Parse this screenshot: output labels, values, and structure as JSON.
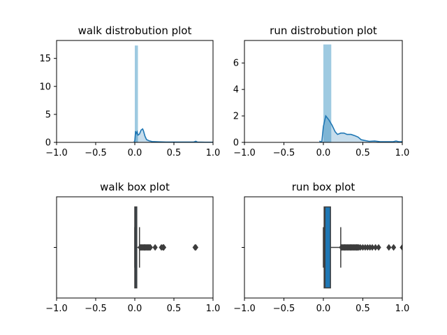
{
  "chart_data": [
    {
      "type": "histogram-kde",
      "title": "walk distrobution plot",
      "xlim": [
        -1.0,
        1.0
      ],
      "ylim": [
        0,
        18.2
      ],
      "xticks": [
        "−1.0",
        "−0.5",
        "0.0",
        "0.5",
        "1.0"
      ],
      "xtick_values": [
        -1.0,
        -0.5,
        0.0,
        0.5,
        1.0
      ],
      "yticks": [
        "0",
        "5",
        "10",
        "15"
      ],
      "ytick_values": [
        0,
        5,
        10,
        15
      ],
      "bar_color": "#9ecae1",
      "line_color": "#1f77b4",
      "bars": [
        {
          "x0": 0.0,
          "x1": 0.04,
          "height": 17.3
        }
      ],
      "kde": [
        [
          -0.01,
          0.1
        ],
        [
          0.0,
          0.3
        ],
        [
          0.01,
          2.0
        ],
        [
          0.02,
          1.6
        ],
        [
          0.03,
          1.9
        ],
        [
          0.04,
          1.3
        ],
        [
          0.06,
          1.5
        ],
        [
          0.08,
          2.2
        ],
        [
          0.1,
          2.4
        ],
        [
          0.11,
          2.1
        ],
        [
          0.13,
          1.1
        ],
        [
          0.15,
          0.5
        ],
        [
          0.18,
          0.3
        ],
        [
          0.22,
          0.15
        ],
        [
          0.3,
          0.1
        ],
        [
          0.4,
          0.05
        ],
        [
          0.6,
          0.05
        ],
        [
          0.75,
          0.05
        ],
        [
          0.78,
          0.2
        ],
        [
          0.8,
          0.05
        ],
        [
          0.9,
          0.03
        ],
        [
          1.0,
          0.02
        ]
      ]
    },
    {
      "type": "histogram-kde",
      "title": "run distrobution plot",
      "xlim": [
        -1.0,
        1.0
      ],
      "ylim": [
        0,
        7.7
      ],
      "xticks": [
        "−1.0",
        "−0.5",
        "0.0",
        "0.5",
        "1.0"
      ],
      "xtick_values": [
        -1.0,
        -0.5,
        0.0,
        0.5,
        1.0
      ],
      "yticks": [
        "0",
        "2",
        "4",
        "6"
      ],
      "ytick_values": [
        0,
        2,
        4,
        6
      ],
      "bar_color": "#9ecae1",
      "line_color": "#1f77b4",
      "bars": [
        {
          "x0": 0.0,
          "x1": 0.1,
          "height": 7.4
        }
      ],
      "kde": [
        [
          -0.05,
          0.1
        ],
        [
          -0.02,
          0.0
        ],
        [
          0.0,
          1.2
        ],
        [
          0.03,
          2.0
        ],
        [
          0.07,
          1.7
        ],
        [
          0.11,
          1.3
        ],
        [
          0.15,
          0.8
        ],
        [
          0.18,
          0.6
        ],
        [
          0.22,
          0.7
        ],
        [
          0.26,
          0.7
        ],
        [
          0.3,
          0.6
        ],
        [
          0.35,
          0.6
        ],
        [
          0.4,
          0.5
        ],
        [
          0.44,
          0.4
        ],
        [
          0.48,
          0.2
        ],
        [
          0.52,
          0.15
        ],
        [
          0.58,
          0.08
        ],
        [
          0.65,
          0.1
        ],
        [
          0.72,
          0.05
        ],
        [
          0.8,
          0.05
        ],
        [
          0.88,
          0.05
        ],
        [
          0.92,
          0.1
        ],
        [
          0.96,
          0.05
        ],
        [
          1.0,
          0.05
        ]
      ]
    },
    {
      "type": "box",
      "title": "walk box plot",
      "xlim": [
        -1.0,
        1.0
      ],
      "xticks": [
        "−1.0",
        "−0.5",
        "0.0",
        "0.5",
        "1.0"
      ],
      "xtick_values": [
        -1.0,
        -0.5,
        0.0,
        0.5,
        1.0
      ],
      "box_color": "#1f77b4",
      "edge_color": "#3d3d3d",
      "q1": 0.0,
      "median": 0.01,
      "q3": 0.025,
      "whisker_low": 0.0,
      "whisker_high": 0.06,
      "outliers": [
        0.07,
        0.08,
        0.09,
        0.1,
        0.11,
        0.12,
        0.13,
        0.14,
        0.15,
        0.16,
        0.17,
        0.18,
        0.19,
        0.2,
        0.26,
        0.34,
        0.36,
        0.37,
        0.77,
        0.78
      ]
    },
    {
      "type": "box",
      "title": "run box plot",
      "xlim": [
        -1.0,
        1.0
      ],
      "xticks": [
        "−1.0",
        "−0.5",
        "0.0",
        "0.5",
        "1.0"
      ],
      "xtick_values": [
        -1.0,
        -0.5,
        0.0,
        0.5,
        1.0
      ],
      "box_color": "#1f77b4",
      "edge_color": "#3d3d3d",
      "q1": 0.01,
      "median": 0.02,
      "q3": 0.09,
      "whisker_low": 0.0,
      "whisker_high": 0.22,
      "outliers": [
        0.23,
        0.24,
        0.25,
        0.26,
        0.27,
        0.28,
        0.29,
        0.3,
        0.31,
        0.32,
        0.33,
        0.34,
        0.35,
        0.36,
        0.37,
        0.38,
        0.39,
        0.4,
        0.41,
        0.42,
        0.43,
        0.44,
        0.45,
        0.47,
        0.5,
        0.53,
        0.56,
        0.59,
        0.62,
        0.66,
        0.7,
        0.83,
        0.89,
        1.0
      ]
    }
  ]
}
